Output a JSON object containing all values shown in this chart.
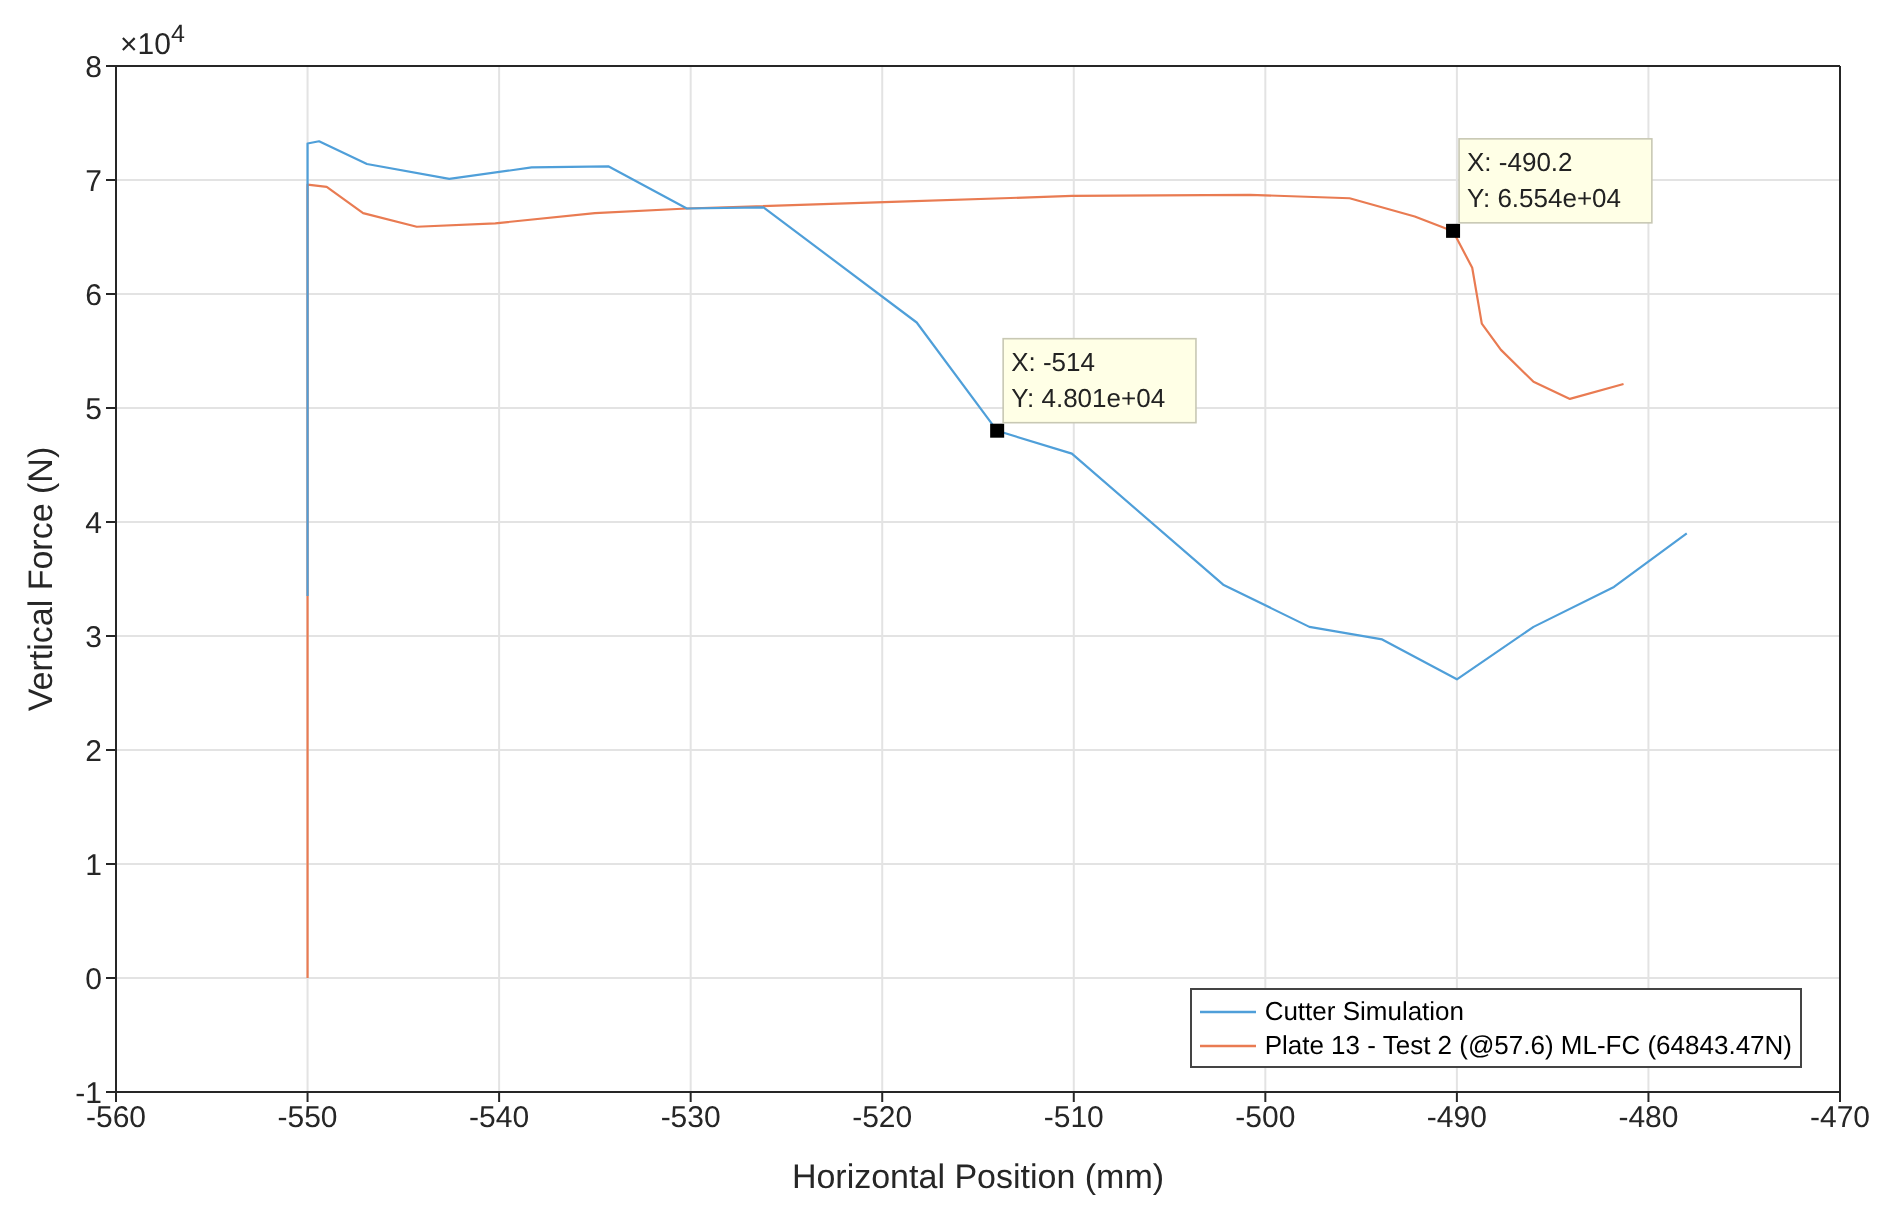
{
  "chart_data": {
    "type": "line",
    "xlabel": "Horizontal Position (mm)",
    "ylabel": "Vertical Force (N)",
    "xlim": [
      -560,
      -470
    ],
    "xticks": [
      -560,
      -550,
      -540,
      -530,
      -520,
      -510,
      -500,
      -490,
      -480,
      -470
    ],
    "ylim": [
      -1,
      8
    ],
    "yticks": [
      -1,
      0,
      1,
      2,
      3,
      4,
      5,
      6,
      7,
      8
    ],
    "grid": true,
    "legend": "bottom right",
    "annotations": [
      "×10$^{4}$",
      {
        "text": "X: -514\nY: 4.801e+04",
        "x": -514,
        "y": 4.801
      },
      {
        "text": "X: -490.2\nY: 6.554e+04",
        "x": -490.2,
        "y": 6.554
      }
    ],
    "series": [
      {
        "name": "Cutter Simulation",
        "color": "#4f9fd9",
        "x": [
          -550,
          -550,
          -549.4,
          -546.9,
          -542.6,
          -538.3,
          -534.3,
          -530.2,
          -526.2,
          -518.2,
          -514,
          -510.1,
          -502.2,
          -497.7,
          -493.9,
          -490,
          -486,
          -481.8,
          -478
        ],
        "values": [
          3.35,
          7.32,
          7.34,
          7.14,
          7.01,
          7.11,
          7.12,
          6.75,
          6.76,
          5.75,
          4.8,
          4.6,
          3.45,
          3.08,
          2.97,
          2.62,
          3.08,
          3.43,
          3.9
        ]
      },
      {
        "name": "Plate 13 - Test 2 (@57.6) ML-FC (64843.47N)",
        "color": "#e97b52",
        "x": [
          -550,
          -550,
          -549,
          -547.1,
          -544.3,
          -540.2,
          -535,
          -530.2,
          -519.1,
          -510.1,
          -500.8,
          -495.6,
          -492.2,
          -490.2,
          -489.2,
          -488.7,
          -487.7,
          -486,
          -484.1,
          -481.3
        ],
        "values": [
          0,
          6.96,
          6.94,
          6.71,
          6.59,
          6.62,
          6.71,
          6.75,
          6.81,
          6.86,
          6.87,
          6.84,
          6.68,
          6.55,
          6.23,
          5.74,
          5.51,
          5.23,
          5.08,
          5.21
        ]
      }
    ]
  }
}
